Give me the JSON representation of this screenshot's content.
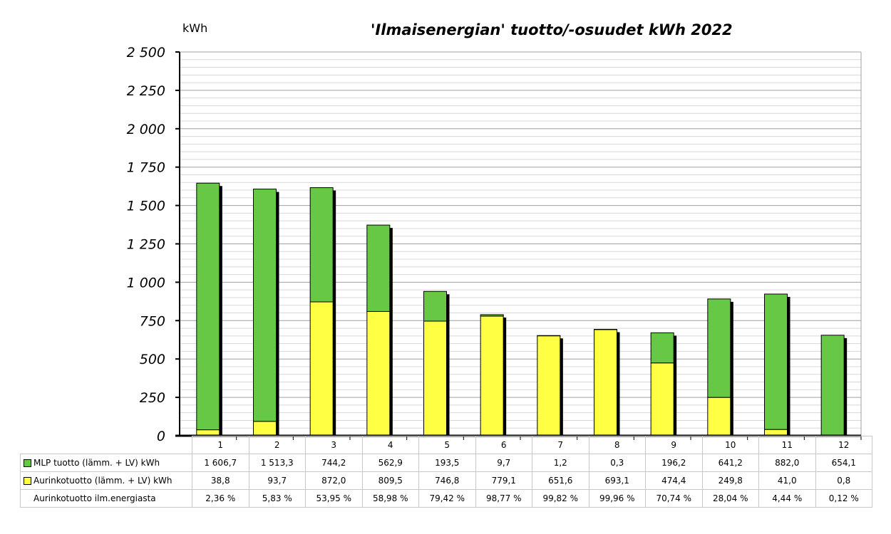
{
  "chart_data": {
    "type": "bar",
    "stacked": true,
    "title": "'Ilmaisenergian' tuotto/-osuudet kWh 2022",
    "ylabel": "kWh",
    "xlabel": "",
    "ylim": [
      0,
      2500
    ],
    "yticks": [
      "0",
      "250",
      "500",
      "750",
      "1 000",
      "1 250",
      "1 500",
      "1 750",
      "2 000",
      "2 250",
      "2 500"
    ],
    "categories": [
      "1",
      "2",
      "3",
      "4",
      "5",
      "6",
      "7",
      "8",
      "9",
      "10",
      "11",
      "12"
    ],
    "grid": true,
    "series": [
      {
        "name": "Aurinkotuotto (lämm. + LV) kWh",
        "color": "#ffff44",
        "values": [
          38.8,
          93.7,
          872.0,
          809.5,
          746.8,
          779.1,
          651.6,
          693.1,
          474.4,
          249.8,
          41.0,
          0.8
        ],
        "labels": [
          "38,8",
          "93,7",
          "872,0",
          "809,5",
          "746,8",
          "779,1",
          "651,6",
          "693,1",
          "474,4",
          "249,8",
          "41,0",
          "0,8"
        ]
      },
      {
        "name": "MLP tuotto (lämm. + LV) kWh",
        "color": "#66c844",
        "values": [
          1606.7,
          1513.3,
          744.2,
          562.9,
          193.5,
          9.7,
          1.2,
          0.3,
          196.2,
          641.2,
          882.0,
          654.1
        ],
        "labels": [
          "1 606,7",
          "1 513,3",
          "744,2",
          "562,9",
          "193,5",
          "9,7",
          "1,2",
          "0,3",
          "196,2",
          "641,2",
          "882,0",
          "654,1"
        ]
      }
    ],
    "table_rows": [
      {
        "label": "MLP tuotto (lämm. + LV) kWh",
        "series": 1
      },
      {
        "label": "Aurinkotuotto (lämm. + LV) kWh",
        "series": 0
      },
      {
        "label": "Aurinkotuotto ilm.energiasta",
        "values": [
          "2,36 %",
          "5,83 %",
          "53,95 %",
          "58,98 %",
          "79,42 %",
          "98,77 %",
          "99,82 %",
          "99,96 %",
          "70,74 %",
          "28,04 %",
          "4,44 %",
          "0,12 %"
        ]
      }
    ]
  }
}
